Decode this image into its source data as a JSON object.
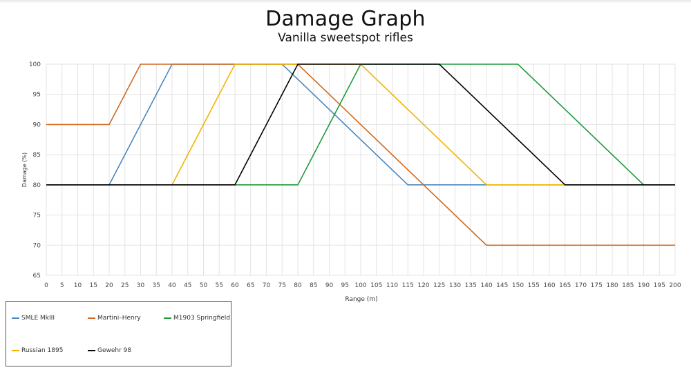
{
  "chart_data": {
    "type": "line",
    "title": "Damage Graph",
    "subtitle": "Vanilla sweetspot rifles",
    "xlabel": "Range (m)",
    "ylabel": "Damage (%)",
    "xlim": [
      0,
      200
    ],
    "ylim": [
      65,
      100
    ],
    "xticks": [
      0,
      5,
      10,
      15,
      20,
      25,
      30,
      35,
      40,
      45,
      50,
      55,
      60,
      65,
      70,
      75,
      80,
      85,
      90,
      95,
      100,
      105,
      110,
      115,
      120,
      125,
      130,
      135,
      140,
      145,
      150,
      155,
      160,
      165,
      170,
      175,
      180,
      185,
      190,
      195,
      200
    ],
    "yticks": [
      65,
      70,
      75,
      80,
      85,
      90,
      95,
      100
    ],
    "grid": true,
    "legend_position": "bottom-left",
    "series": [
      {
        "name": "SMLE MkIII",
        "color": "#4a86c0",
        "points": [
          [
            0,
            80
          ],
          [
            20,
            80
          ],
          [
            40,
            100
          ],
          [
            75,
            100
          ],
          [
            115,
            80
          ],
          [
            200,
            80
          ]
        ]
      },
      {
        "name": "Martini–Henry",
        "color": "#d2691e",
        "points": [
          [
            0,
            90
          ],
          [
            20,
            90
          ],
          [
            30,
            100
          ],
          [
            80,
            100
          ],
          [
            140,
            70
          ],
          [
            200,
            70
          ]
        ]
      },
      {
        "name": "M1903 Springfield",
        "color": "#1f9a3a",
        "points": [
          [
            0,
            80
          ],
          [
            80,
            80
          ],
          [
            100,
            100
          ],
          [
            150,
            100
          ],
          [
            190,
            80
          ],
          [
            200,
            80
          ]
        ]
      },
      {
        "name": "Russian 1895",
        "color": "#f0b400",
        "points": [
          [
            0,
            80
          ],
          [
            40,
            80
          ],
          [
            60,
            100
          ],
          [
            100,
            100
          ],
          [
            140,
            80
          ],
          [
            200,
            80
          ]
        ]
      },
      {
        "name": "Gewehr 98",
        "color": "#000000",
        "points": [
          [
            0,
            80
          ],
          [
            60,
            80
          ],
          [
            80,
            100
          ],
          [
            125,
            100
          ],
          [
            165,
            80
          ],
          [
            200,
            80
          ]
        ]
      }
    ]
  }
}
